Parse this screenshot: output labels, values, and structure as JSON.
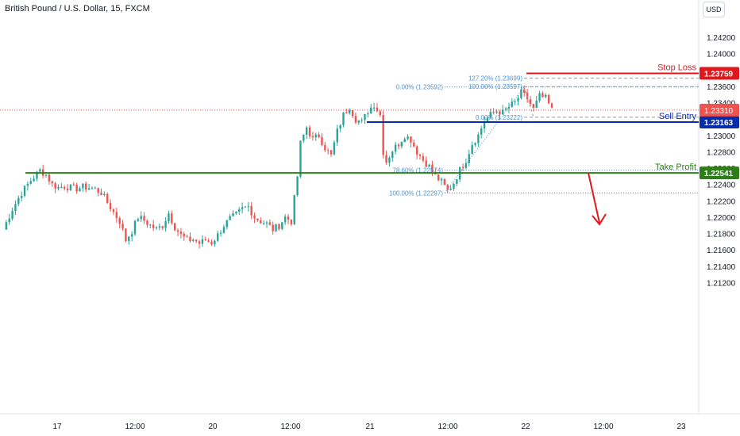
{
  "header": {
    "symbol_title": "British Pound / U.S. Dollar, 15, FXCM",
    "currency_button": "USD"
  },
  "colors": {
    "up": "#26a69a",
    "down": "#ef5350",
    "stop_loss": "#e0171c",
    "sell_entry": "#0b2ca8",
    "take_profit": "#2e7d1a",
    "fib": "#4a90c8",
    "price_line": "#ef5350"
  },
  "chart_data": {
    "type": "candlestick",
    "title": "British Pound / U.S. Dollar, 15, FXCM",
    "ylim": [
      1.2105,
      1.2445
    ],
    "y_ticks": [
      "1.24200",
      "1.24000",
      "1.23800",
      "1.23600",
      "1.23400",
      "1.23200",
      "1.23000",
      "1.22800",
      "1.22600",
      "1.22400",
      "1.22200",
      "1.22000",
      "1.21800",
      "1.21600",
      "1.21400",
      "1.21200"
    ],
    "x_ticks": [
      "17",
      "12:00",
      "20",
      "12:00",
      "21",
      "12:00",
      "22",
      "12:00",
      "23"
    ],
    "price_path": [
      [
        0,
        1.2185
      ],
      [
        3,
        1.221
      ],
      [
        6,
        1.223
      ],
      [
        9,
        1.2245
      ],
      [
        12,
        1.2257
      ],
      [
        14,
        1.2252
      ],
      [
        16,
        1.224
      ],
      [
        18,
        1.2236
      ],
      [
        20,
        1.2238
      ],
      [
        22,
        1.2236
      ],
      [
        24,
        1.2235
      ],
      [
        26,
        1.2237
      ],
      [
        28,
        1.2236
      ],
      [
        30,
        1.2234
      ],
      [
        32,
        1.223
      ],
      [
        34,
        1.2218
      ],
      [
        36,
        1.2206
      ],
      [
        38,
        1.2195
      ],
      [
        40,
        1.2172
      ],
      [
        42,
        1.2183
      ],
      [
        44,
        1.22
      ],
      [
        46,
        1.2196
      ],
      [
        48,
        1.219
      ],
      [
        50,
        1.2185
      ],
      [
        52,
        1.219
      ],
      [
        54,
        1.2205
      ],
      [
        56,
        1.2188
      ],
      [
        58,
        1.2178
      ],
      [
        60,
        1.2172
      ],
      [
        62,
        1.2173
      ],
      [
        64,
        1.2168
      ],
      [
        66,
        1.2172
      ],
      [
        68,
        1.2169
      ],
      [
        70,
        1.2178
      ],
      [
        72,
        1.219
      ],
      [
        74,
        1.2198
      ],
      [
        76,
        1.2203
      ],
      [
        78,
        1.221
      ],
      [
        80,
        1.2213
      ],
      [
        82,
        1.22
      ],
      [
        84,
        1.2195
      ],
      [
        86,
        1.2192
      ],
      [
        88,
        1.2185
      ],
      [
        90,
        1.219
      ],
      [
        92,
        1.22
      ],
      [
        94,
        1.2195
      ],
      [
        96,
        1.225
      ],
      [
        97,
        1.229
      ],
      [
        99,
        1.231
      ],
      [
        101,
        1.2295
      ],
      [
        103,
        1.23
      ],
      [
        105,
        1.2285
      ],
      [
        107,
        1.2275
      ],
      [
        109,
        1.2305
      ],
      [
        111,
        1.2325
      ],
      [
        113,
        1.2335
      ],
      [
        115,
        1.232
      ],
      [
        117,
        1.2316
      ],
      [
        119,
        1.233
      ],
      [
        121,
        1.2338
      ],
      [
        123,
        1.2325
      ],
      [
        124,
        1.228
      ],
      [
        125,
        1.2268
      ],
      [
        127,
        1.2282
      ],
      [
        129,
        1.229
      ],
      [
        131,
        1.23
      ],
      [
        133,
        1.2295
      ],
      [
        135,
        1.228
      ],
      [
        137,
        1.227
      ],
      [
        139,
        1.2262
      ],
      [
        141,
        1.225
      ],
      [
        143,
        1.2243
      ],
      [
        145,
        1.2232
      ],
      [
        147,
        1.2242
      ],
      [
        149,
        1.2258
      ],
      [
        151,
        1.227
      ],
      [
        153,
        1.229
      ],
      [
        155,
        1.23
      ],
      [
        157,
        1.2318
      ],
      [
        159,
        1.2325
      ],
      [
        161,
        1.233
      ],
      [
        163,
        1.2328
      ],
      [
        165,
        1.2335
      ],
      [
        167,
        1.234
      ],
      [
        169,
        1.2352
      ],
      [
        171,
        1.2345
      ],
      [
        173,
        1.2332
      ],
      [
        175,
        1.2348
      ],
      [
        177,
        1.2345
      ],
      [
        179,
        1.2331
      ]
    ],
    "levels": [
      {
        "label": "Stop Loss",
        "price": 1.23759,
        "price_label": "1.23759"
      },
      {
        "label": "Sell Entry",
        "price": 1.23163,
        "price_label": "1.23163"
      },
      {
        "label": "Take Profit",
        "price": 1.22541,
        "price_label": "1.22541"
      }
    ],
    "current_price": {
      "price": 1.2331,
      "price_label": "1.23310"
    },
    "fib_a": [
      {
        "label": "0.00% (1.23592)",
        "price": 1.23592
      },
      {
        "label": "78.60% (1.22574)",
        "price": 1.22574
      },
      {
        "label": "100.00% (1.22297)",
        "price": 1.22297
      }
    ],
    "fib_b": [
      {
        "label": "127.20% (1.23699)",
        "price": 1.23699
      },
      {
        "label": "100.00% (1.23597)",
        "price": 1.23597
      },
      {
        "label": "0.00% (1.23222)",
        "price": 1.23222
      }
    ]
  }
}
